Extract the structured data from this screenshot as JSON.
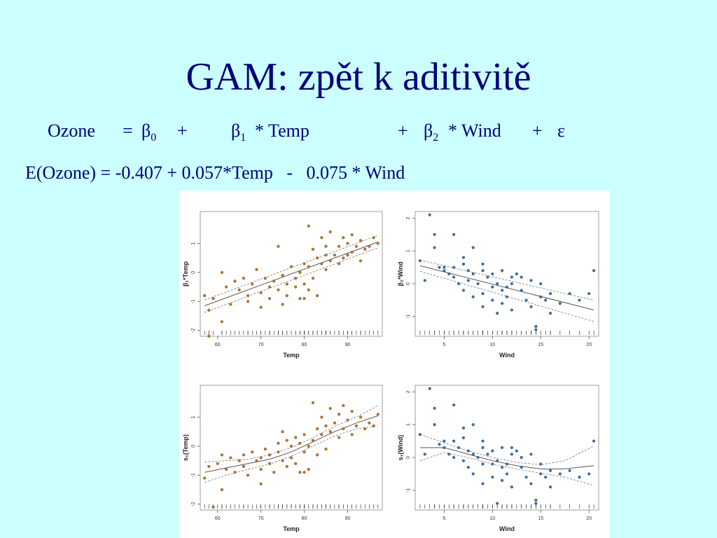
{
  "title": "GAM: zpět k aditivitě",
  "equation1": {
    "lhs": "Ozone",
    "eq": "=",
    "b0": "β",
    "b0_sub": "0",
    "plus1": "+",
    "b1": "β",
    "b1_sub": "1",
    "temp_term": "* Temp",
    "plus2": "+",
    "b2": "β",
    "b2_sub": "2",
    "wind_term": "* Wind",
    "plus3": "+",
    "eps": "ε"
  },
  "equation2": "E(Ozone) = -0.407 + 0.057*Temp   -   0.075 * Wind",
  "colors": {
    "background": "#ccffff",
    "title": "#00007a",
    "temp_points": "#c8741e",
    "wind_points": "#2e74b5",
    "fit_line": "#555555"
  },
  "chart_data": [
    {
      "type": "scatter",
      "xlabel": "Temp",
      "ylabel": "β₁*Temp",
      "xlim": [
        56,
        98
      ],
      "ylim": [
        -2.2,
        2.1
      ],
      "xticks": [
        60,
        70,
        80,
        90
      ],
      "yticks": [
        -2,
        -1,
        0,
        1
      ],
      "fit": "linear",
      "line": [
        [
          57,
          -1.15
        ],
        [
          97,
          1.05
        ]
      ],
      "upper": [
        [
          57,
          -0.95
        ],
        [
          97,
          1.28
        ]
      ],
      "lower": [
        [
          57,
          -1.38
        ],
        [
          97,
          0.85
        ]
      ],
      "points": [
        [
          57,
          -0.8
        ],
        [
          58,
          -1.3
        ],
        [
          59,
          -0.9
        ],
        [
          61,
          0.0
        ],
        [
          62,
          -0.5
        ],
        [
          63,
          -1.1
        ],
        [
          64,
          -0.3
        ],
        [
          65,
          -0.6
        ],
        [
          66,
          -0.2
        ],
        [
          67,
          -0.8
        ],
        [
          67,
          -1.0
        ],
        [
          68,
          -0.4
        ],
        [
          69,
          0.1
        ],
        [
          70,
          -0.7
        ],
        [
          71,
          -0.2
        ],
        [
          72,
          -0.9
        ],
        [
          72,
          -0.5
        ],
        [
          73,
          -0.3
        ],
        [
          74,
          0.9
        ],
        [
          74,
          -0.6
        ],
        [
          75,
          -0.1
        ],
        [
          76,
          -0.4
        ],
        [
          76,
          -0.8
        ],
        [
          77,
          0.2
        ],
        [
          78,
          -0.5
        ],
        [
          78,
          -0.2
        ],
        [
          79,
          0.0
        ],
        [
          79,
          -0.9
        ],
        [
          80,
          0.3
        ],
        [
          80,
          -0.4
        ],
        [
          81,
          1.6
        ],
        [
          81,
          -0.6
        ],
        [
          81,
          0.2
        ],
        [
          82,
          0.8
        ],
        [
          82,
          -0.2
        ],
        [
          83,
          0.5
        ],
        [
          83,
          -0.8
        ],
        [
          84,
          1.2
        ],
        [
          84,
          0.3
        ],
        [
          85,
          0.6
        ],
        [
          85,
          0.1
        ],
        [
          86,
          1.4
        ],
        [
          86,
          0.4
        ],
        [
          87,
          0.6
        ],
        [
          88,
          0.9
        ],
        [
          88,
          0.3
        ],
        [
          89,
          1.2
        ],
        [
          89,
          0.5
        ],
        [
          90,
          1.0
        ],
        [
          90,
          0.6
        ],
        [
          91,
          1.3
        ],
        [
          91,
          0.7
        ],
        [
          92,
          0.9
        ],
        [
          93,
          1.1
        ],
        [
          93,
          0.4
        ],
        [
          94,
          0.8
        ],
        [
          95,
          0.9
        ],
        [
          96,
          1.2
        ],
        [
          97,
          1.0
        ],
        [
          61,
          -1.7
        ],
        [
          70,
          -1.2
        ],
        [
          75,
          -1.1
        ],
        [
          80,
          -0.9
        ],
        [
          85,
          0.9
        ],
        [
          58,
          -2.2
        ]
      ]
    },
    {
      "type": "scatter",
      "xlabel": "Wind",
      "ylabel": "β₂*Wind",
      "xlim": [
        2,
        21
      ],
      "ylim": [
        -1.6,
        2.2
      ],
      "xticks": [
        5,
        10,
        15,
        20
      ],
      "yticks": [
        -1,
        0,
        1,
        2
      ],
      "fit": "linear",
      "line": [
        [
          2.5,
          0.55
        ],
        [
          20.5,
          -0.8
        ]
      ],
      "upper": [
        [
          2.5,
          0.72
        ],
        [
          20.5,
          -0.5
        ]
      ],
      "lower": [
        [
          2.5,
          0.38
        ],
        [
          20.5,
          -1.15
        ]
      ],
      "points": [
        [
          2.5,
          0.7
        ],
        [
          3,
          0.1
        ],
        [
          3.5,
          2.1
        ],
        [
          4,
          1.5
        ],
        [
          4,
          1.1
        ],
        [
          4.5,
          0.5
        ],
        [
          5,
          0.4
        ],
        [
          5,
          0.5
        ],
        [
          5.5,
          0.3
        ],
        [
          6,
          0.5
        ],
        [
          6,
          0.2
        ],
        [
          6.5,
          0.0
        ],
        [
          7,
          0.6
        ],
        [
          7,
          -0.2
        ],
        [
          7.5,
          0.4
        ],
        [
          7.5,
          0.1
        ],
        [
          8,
          1.1
        ],
        [
          8,
          0.3
        ],
        [
          8,
          -0.4
        ],
        [
          8.5,
          0.0
        ],
        [
          9,
          0.6
        ],
        [
          9,
          -0.3
        ],
        [
          9,
          -0.7
        ],
        [
          9.5,
          0.2
        ],
        [
          10,
          0.3
        ],
        [
          10,
          -0.1
        ],
        [
          10,
          -0.5
        ],
        [
          10.5,
          0.0
        ],
        [
          10.5,
          -0.9
        ],
        [
          11,
          0.4
        ],
        [
          11,
          -0.2
        ],
        [
          11,
          -0.6
        ],
        [
          11.5,
          -0.1
        ],
        [
          11.5,
          -0.4
        ],
        [
          12,
          0.0
        ],
        [
          12,
          -0.8
        ],
        [
          12.5,
          0.3
        ],
        [
          13,
          0.2
        ],
        [
          13,
          -0.2
        ],
        [
          13.5,
          -0.5
        ],
        [
          14,
          0.1
        ],
        [
          14,
          -0.7
        ],
        [
          14.5,
          -1.3
        ],
        [
          14.5,
          -1.4
        ],
        [
          15,
          -0.4
        ],
        [
          15,
          0.0
        ],
        [
          15.5,
          -0.5
        ],
        [
          16,
          -0.3
        ],
        [
          16,
          -0.9
        ],
        [
          17,
          -0.6
        ],
        [
          18,
          -0.3
        ],
        [
          19,
          -0.5
        ],
        [
          20,
          -0.3
        ],
        [
          20.5,
          0.4
        ],
        [
          6,
          1.5
        ],
        [
          7,
          0.8
        ],
        [
          9,
          0.4
        ],
        [
          12,
          0.2
        ]
      ]
    },
    {
      "type": "scatter",
      "xlabel": "Temp",
      "ylabel": "s₁(Temp)",
      "xlim": [
        56,
        98
      ],
      "ylim": [
        -2.2,
        2.1
      ],
      "xticks": [
        60,
        70,
        80,
        90
      ],
      "yticks": [
        -2,
        -1,
        0,
        1
      ],
      "fit": "smooth",
      "line": [
        [
          57,
          -0.9
        ],
        [
          62,
          -0.75
        ],
        [
          67,
          -0.6
        ],
        [
          72,
          -0.45
        ],
        [
          77,
          -0.2
        ],
        [
          82,
          0.15
        ],
        [
          87,
          0.5
        ],
        [
          92,
          0.8
        ],
        [
          97,
          1.05
        ]
      ],
      "upper": [
        [
          57,
          -0.55
        ],
        [
          62,
          -0.5
        ],
        [
          67,
          -0.45
        ],
        [
          72,
          -0.3
        ],
        [
          77,
          -0.05
        ],
        [
          82,
          0.3
        ],
        [
          87,
          0.68
        ],
        [
          92,
          1.0
        ],
        [
          97,
          1.4
        ]
      ],
      "lower": [
        [
          57,
          -1.25
        ],
        [
          62,
          -1.0
        ],
        [
          67,
          -0.8
        ],
        [
          72,
          -0.62
        ],
        [
          77,
          -0.35
        ],
        [
          82,
          0.0
        ],
        [
          87,
          0.35
        ],
        [
          92,
          0.6
        ],
        [
          97,
          0.7
        ]
      ],
      "points": [
        [
          57,
          -1.1
        ],
        [
          58,
          -0.7
        ],
        [
          59,
          -2.1
        ],
        [
          60,
          -0.6
        ],
        [
          61,
          -0.3
        ],
        [
          61,
          -1.5
        ],
        [
          62,
          -0.8
        ],
        [
          63,
          -0.4
        ],
        [
          64,
          -0.9
        ],
        [
          65,
          -0.5
        ],
        [
          66,
          -0.3
        ],
        [
          66,
          -0.7
        ],
        [
          67,
          -1.0
        ],
        [
          68,
          -0.2
        ],
        [
          69,
          -0.5
        ],
        [
          70,
          -0.8
        ],
        [
          70,
          -0.4
        ],
        [
          71,
          -0.1
        ],
        [
          72,
          -0.6
        ],
        [
          72,
          -0.3
        ],
        [
          73,
          -0.9
        ],
        [
          74,
          -0.2
        ],
        [
          74,
          0.1
        ],
        [
          75,
          -0.5
        ],
        [
          76,
          -0.7
        ],
        [
          76,
          0.2
        ],
        [
          77,
          0.0
        ],
        [
          77,
          -0.4
        ],
        [
          78,
          0.3
        ],
        [
          78,
          -0.6
        ],
        [
          79,
          0.1
        ],
        [
          79,
          -0.9
        ],
        [
          80,
          0.4
        ],
        [
          80,
          -0.2
        ],
        [
          81,
          0.0
        ],
        [
          81,
          -0.8
        ],
        [
          82,
          1.5
        ],
        [
          82,
          0.2
        ],
        [
          83,
          0.6
        ],
        [
          83,
          -0.3
        ],
        [
          84,
          1.0
        ],
        [
          84,
          0.4
        ],
        [
          85,
          0.7
        ],
        [
          85,
          -0.1
        ],
        [
          86,
          1.3
        ],
        [
          86,
          0.5
        ],
        [
          87,
          0.8
        ],
        [
          88,
          1.1
        ],
        [
          88,
          0.3
        ],
        [
          89,
          1.4
        ],
        [
          89,
          0.6
        ],
        [
          90,
          0.9
        ],
        [
          91,
          1.2
        ],
        [
          91,
          0.4
        ],
        [
          92,
          0.7
        ],
        [
          93,
          1.0
        ],
        [
          94,
          0.6
        ],
        [
          95,
          0.8
        ],
        [
          96,
          0.7
        ],
        [
          97,
          1.1
        ],
        [
          80,
          -0.9
        ],
        [
          75,
          0.5
        ],
        [
          70,
          -1.3
        ]
      ]
    },
    {
      "type": "scatter",
      "xlabel": "Wind",
      "ylabel": "s₁(Wind)",
      "xlim": [
        2,
        21
      ],
      "ylim": [
        -1.6,
        2.2
      ],
      "xticks": [
        5,
        10,
        15,
        20
      ],
      "yticks": [
        -1,
        0,
        1,
        2
      ],
      "fit": "smooth",
      "line": [
        [
          2.5,
          0.3
        ],
        [
          5,
          0.3
        ],
        [
          7.5,
          0.1
        ],
        [
          10,
          -0.1
        ],
        [
          12.5,
          -0.25
        ],
        [
          15,
          -0.35
        ],
        [
          17.5,
          -0.35
        ],
        [
          20.5,
          -0.25
        ]
      ],
      "upper": [
        [
          2.5,
          0.7
        ],
        [
          5,
          0.45
        ],
        [
          7.5,
          0.2
        ],
        [
          10,
          0.0
        ],
        [
          12.5,
          -0.15
        ],
        [
          15,
          -0.22
        ],
        [
          17.5,
          -0.1
        ],
        [
          20.5,
          0.35
        ]
      ],
      "lower": [
        [
          2.5,
          -0.1
        ],
        [
          5,
          0.15
        ],
        [
          7.5,
          0.0
        ],
        [
          10,
          -0.2
        ],
        [
          12.5,
          -0.35
        ],
        [
          15,
          -0.48
        ],
        [
          17.5,
          -0.6
        ],
        [
          20.5,
          -0.85
        ]
      ],
      "points": [
        [
          2.5,
          0.7
        ],
        [
          3,
          0.1
        ],
        [
          3.5,
          2.1
        ],
        [
          4,
          1.5
        ],
        [
          4,
          1.0
        ],
        [
          4.5,
          0.4
        ],
        [
          5,
          0.5
        ],
        [
          5,
          0.3
        ],
        [
          5.5,
          0.1
        ],
        [
          6,
          0.5
        ],
        [
          6,
          0.0
        ],
        [
          6.5,
          0.3
        ],
        [
          7,
          0.6
        ],
        [
          7,
          -0.1
        ],
        [
          7.5,
          0.2
        ],
        [
          7.5,
          -0.3
        ],
        [
          8,
          1.0
        ],
        [
          8,
          0.1
        ],
        [
          8,
          -0.5
        ],
        [
          8.5,
          0.0
        ],
        [
          9,
          0.5
        ],
        [
          9,
          -0.2
        ],
        [
          9,
          -0.8
        ],
        [
          9.5,
          0.1
        ],
        [
          10,
          0.2
        ],
        [
          10,
          -0.2
        ],
        [
          10,
          -0.6
        ],
        [
          10.5,
          -0.1
        ],
        [
          10.5,
          -1.4
        ],
        [
          11,
          0.3
        ],
        [
          11,
          -0.3
        ],
        [
          11,
          -0.7
        ],
        [
          11.5,
          -0.2
        ],
        [
          11.5,
          -0.5
        ],
        [
          12,
          0.1
        ],
        [
          12,
          -0.9
        ],
        [
          12.5,
          0.2
        ],
        [
          13,
          0.0
        ],
        [
          13,
          -0.3
        ],
        [
          13.5,
          -0.6
        ],
        [
          14,
          0.1
        ],
        [
          14,
          -0.8
        ],
        [
          14.5,
          -1.3
        ],
        [
          14.5,
          -1.4
        ],
        [
          15,
          -0.5
        ],
        [
          15,
          -0.2
        ],
        [
          15.5,
          -0.6
        ],
        [
          16,
          -0.4
        ],
        [
          16,
          -0.9
        ],
        [
          17,
          -0.5
        ],
        [
          18,
          -0.4
        ],
        [
          19,
          -0.6
        ],
        [
          20,
          -0.5
        ],
        [
          20.5,
          0.5
        ],
        [
          6,
          1.6
        ],
        [
          7,
          0.9
        ],
        [
          9,
          0.3
        ],
        [
          12,
          0.3
        ]
      ]
    }
  ]
}
